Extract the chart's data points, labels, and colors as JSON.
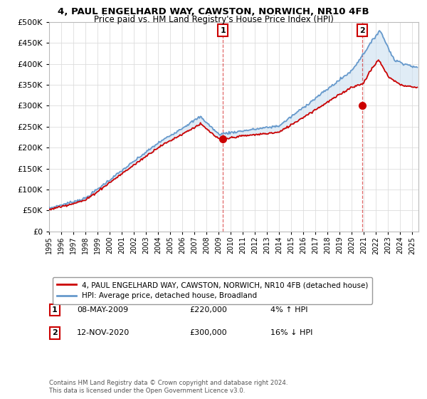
{
  "title": "4, PAUL ENGELHARD WAY, CAWSTON, NORWICH, NR10 4FB",
  "subtitle": "Price paid vs. HM Land Registry's House Price Index (HPI)",
  "legend_line1": "4, PAUL ENGELHARD WAY, CAWSTON, NORWICH, NR10 4FB (detached house)",
  "legend_line2": "HPI: Average price, detached house, Broadland",
  "note": "Contains HM Land Registry data © Crown copyright and database right 2024.\nThis data is licensed under the Open Government Licence v3.0.",
  "sale1_label": "1",
  "sale1_date": "08-MAY-2009",
  "sale1_price": "£220,000",
  "sale1_hpi": "4% ↑ HPI",
  "sale2_label": "2",
  "sale2_date": "12-NOV-2020",
  "sale2_price": "£300,000",
  "sale2_hpi": "16% ↓ HPI",
  "sale1_x": 2009.36,
  "sale1_y": 220000,
  "sale2_x": 2020.87,
  "sale2_y": 300000,
  "red_color": "#cc0000",
  "blue_color": "#6699cc",
  "blue_fill": "#cce0f0",
  "ylim": [
    0,
    500000
  ],
  "xlim": [
    1995,
    2025.5
  ],
  "yticks": [
    0,
    50000,
    100000,
    150000,
    200000,
    250000,
    300000,
    350000,
    400000,
    450000,
    500000
  ],
  "fig_width": 6.0,
  "fig_height": 5.6,
  "dpi": 100
}
